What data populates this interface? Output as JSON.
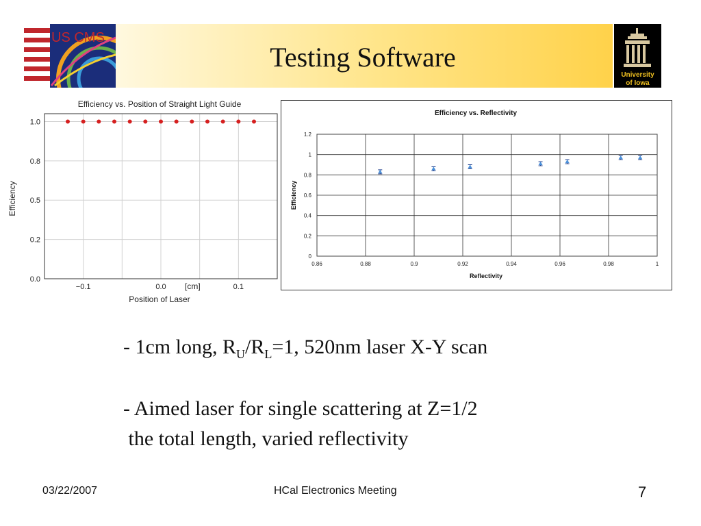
{
  "slide": {
    "title": "Testing Software",
    "logos": {
      "left_text": "US CMS",
      "right_text_line1": "University",
      "right_text_line2": "of Iowa"
    },
    "bullets": {
      "b1": {
        "prefix": "- 1cm long, R",
        "sub1": "U",
        "mid": "/R",
        "sub2": "L",
        "suffix": "=1, 520nm laser X-Y scan"
      },
      "b2_line1": "- Aimed laser for single scattering at Z=1/2",
      "b2_line2": " the total length, varied reflectivity"
    },
    "footer": {
      "date": "03/22/2007",
      "meeting": "HCal Electronics Meeting",
      "page": "7"
    }
  },
  "chart_data": [
    {
      "type": "scatter",
      "title": "Efficiency vs. Position of Straight Light Guide",
      "xlabel": "Position of Laser",
      "ylabel": "Efficiency",
      "x_annotation": "[cm]",
      "xlim": [
        -0.15,
        0.15
      ],
      "ylim": [
        0.0,
        1.05
      ],
      "x_ticks": [
        -0.1,
        0.0,
        0.1
      ],
      "x_tick_labels": [
        "−0.1",
        "0.0",
        "0.1"
      ],
      "y_ticks": [
        0.0,
        0.25,
        0.5,
        0.75,
        1.0
      ],
      "y_tick_labels": [
        "0.0",
        "0.2",
        "0.5",
        "0.8",
        "1.0"
      ],
      "grid": true,
      "marker_color": "#d62020",
      "points": [
        {
          "x": -0.12,
          "y": 1.0
        },
        {
          "x": -0.1,
          "y": 1.0
        },
        {
          "x": -0.08,
          "y": 1.0
        },
        {
          "x": -0.06,
          "y": 1.0
        },
        {
          "x": -0.04,
          "y": 1.0
        },
        {
          "x": -0.02,
          "y": 1.0
        },
        {
          "x": 0.0,
          "y": 1.0
        },
        {
          "x": 0.02,
          "y": 1.0
        },
        {
          "x": 0.04,
          "y": 1.0
        },
        {
          "x": 0.06,
          "y": 1.0
        },
        {
          "x": 0.08,
          "y": 1.0
        },
        {
          "x": 0.1,
          "y": 1.0
        },
        {
          "x": 0.12,
          "y": 1.0
        }
      ]
    },
    {
      "type": "scatter",
      "title": "Efficiency vs. Reflectivity",
      "xlabel": "Reflectivity",
      "ylabel": "Efficiency",
      "xlim": [
        0.86,
        1.0
      ],
      "ylim": [
        0,
        1.2
      ],
      "x_ticks": [
        0.86,
        0.88,
        0.9,
        0.92,
        0.94,
        0.96,
        0.98,
        1.0
      ],
      "x_tick_labels": [
        "0.86",
        "0.88",
        "0.9",
        "0.92",
        "0.94",
        "0.96",
        "0.98",
        "1"
      ],
      "y_ticks": [
        0,
        0.2,
        0.4,
        0.6,
        0.8,
        1.0,
        1.2
      ],
      "y_tick_labels": [
        "0",
        "0.2",
        "0.4",
        "0.6",
        "0.8",
        "1",
        "1.2"
      ],
      "grid": true,
      "marker_color": "#4a90d9",
      "points": [
        {
          "x": 0.886,
          "y": 0.83,
          "err": 0.02
        },
        {
          "x": 0.908,
          "y": 0.86,
          "err": 0.02
        },
        {
          "x": 0.923,
          "y": 0.88,
          "err": 0.02
        },
        {
          "x": 0.952,
          "y": 0.91,
          "err": 0.02
        },
        {
          "x": 0.963,
          "y": 0.93,
          "err": 0.02
        },
        {
          "x": 0.985,
          "y": 0.97,
          "err": 0.02
        },
        {
          "x": 0.993,
          "y": 0.97,
          "err": 0.02
        }
      ]
    }
  ]
}
